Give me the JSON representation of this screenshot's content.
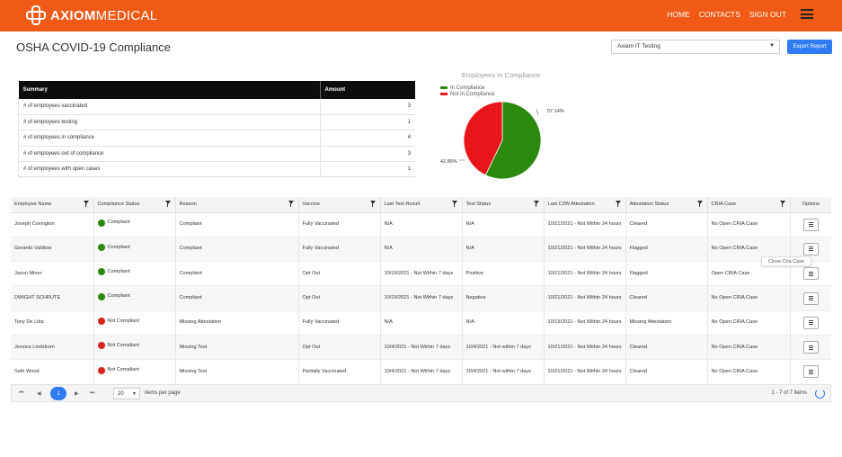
{
  "header": {
    "brand_bold": "AXIOM",
    "brand_light": "MEDICAL",
    "nav": [
      "HOME",
      "CONTACTS",
      "SIGN OUT"
    ],
    "accent_color": "#f05a16"
  },
  "page": {
    "title": "OSHA COVID-19 Compliance",
    "org_select": "Axiam IT Testing",
    "export_label": "Export Report"
  },
  "summary": {
    "headers": [
      "Summary",
      "Amount"
    ],
    "rows": [
      {
        "label": "# of employees vaccinated",
        "amount": "3"
      },
      {
        "label": "# of employees testing",
        "amount": "1"
      },
      {
        "label": "# of employees in compliance",
        "amount": "4"
      },
      {
        "label": "# of employees out of compliance",
        "amount": "3"
      },
      {
        "label": "# of employees with open cases",
        "amount": "1"
      }
    ]
  },
  "chart": {
    "title": "Employees In Compliance",
    "legend": [
      "In Compliance",
      "Not In Compliance"
    ],
    "colors": [
      "#2b8a0e",
      "#e8161a"
    ],
    "labels": [
      "57.14%",
      "42.86%"
    ]
  },
  "chart_data": {
    "type": "pie",
    "title": "Employees In Compliance",
    "categories": [
      "In Compliance",
      "Not In Compliance"
    ],
    "values": [
      57.14,
      42.86
    ]
  },
  "grid": {
    "columns": [
      "Employee Name",
      "Compliance Status",
      "Reason",
      "Vaccine",
      "Last Test Result",
      "Test Status",
      "Last C2W Attestation",
      "Attestation Status",
      "CRIA Case",
      "Options"
    ],
    "status_colors": {
      "Compliant": "#2b8a0e",
      "Not Compliant": "#d9231d"
    },
    "rows": [
      {
        "name": "Joseph Covington",
        "status": "Compliant",
        "reason": "Compliant",
        "vaccine": "Fully Vaccinated",
        "last_test": "N/A",
        "test_status": "N/A",
        "attestation": "10/21/2021 - Not Within 24 hours",
        "att_status": "Cleared",
        "cria": "No Open CRIA Case"
      },
      {
        "name": "Gerardo Valdivia",
        "status": "Compliant",
        "reason": "Compliant",
        "vaccine": "Fully Vaccinated",
        "last_test": "N/A",
        "test_status": "N/A",
        "attestation": "10/21/2021 - Not Within 24 hours",
        "att_status": "Flagged",
        "cria": "No Open CRIA Case"
      },
      {
        "name": "Jason Miner",
        "status": "Compliant",
        "reason": "Compliant",
        "vaccine": "Opt Out",
        "last_test": "10/19/2021 - Not Within 7 days",
        "test_status": "Positive",
        "attestation": "10/21/2021 - Not Within 24 hours",
        "att_status": "Flagged",
        "cria": "Open CRIA Case"
      },
      {
        "name": "DWIGHT SCHRUTE",
        "status": "Compliant",
        "reason": "Compliant",
        "vaccine": "Opt Out",
        "last_test": "10/19/2021 - Not Within 7 days",
        "test_status": "Negative",
        "attestation": "10/21/2021 - Not Within 24 hours",
        "att_status": "Cleared",
        "cria": "No Open CRIA Case"
      },
      {
        "name": "Tony De Litta",
        "status": "Not Compliant",
        "reason": "Missing Attestation",
        "vaccine": "Fully Vaccinated",
        "last_test": "N/A",
        "test_status": "N/A",
        "attestation": "10/19/2021 - Not Within 24 hours",
        "att_status": "Missing Attestation",
        "cria": "No Open CRIA Case"
      },
      {
        "name": "Jessica Lindstrom",
        "status": "Not Compliant",
        "reason": "Missing Test",
        "vaccine": "Opt Out",
        "last_test": "10/4/2021 - Not Within 7 days",
        "test_status": "10/4/2021 - Not within 7 days",
        "attestation": "10/21/2021 - Not Within 24 hours",
        "att_status": "Cleared",
        "cria": "No Open CRIA Case"
      },
      {
        "name": "Seth Wood",
        "status": "Not Compliant",
        "reason": "Missing Test",
        "vaccine": "Partially Vaccinated",
        "last_test": "10/4/2021 - Not Within 7 days",
        "test_status": "10/4/2021 - Not within 7 days",
        "attestation": "10/21/2021 - Not Within 24 hours",
        "att_status": "Cleared",
        "cria": "No Open CRIA Case"
      }
    ],
    "tooltip": "Close Cria Case"
  },
  "pager": {
    "current_page": "1",
    "page_size": "20",
    "per_page_label": "items per page",
    "count_label": "1 - 7 of 7 items"
  }
}
